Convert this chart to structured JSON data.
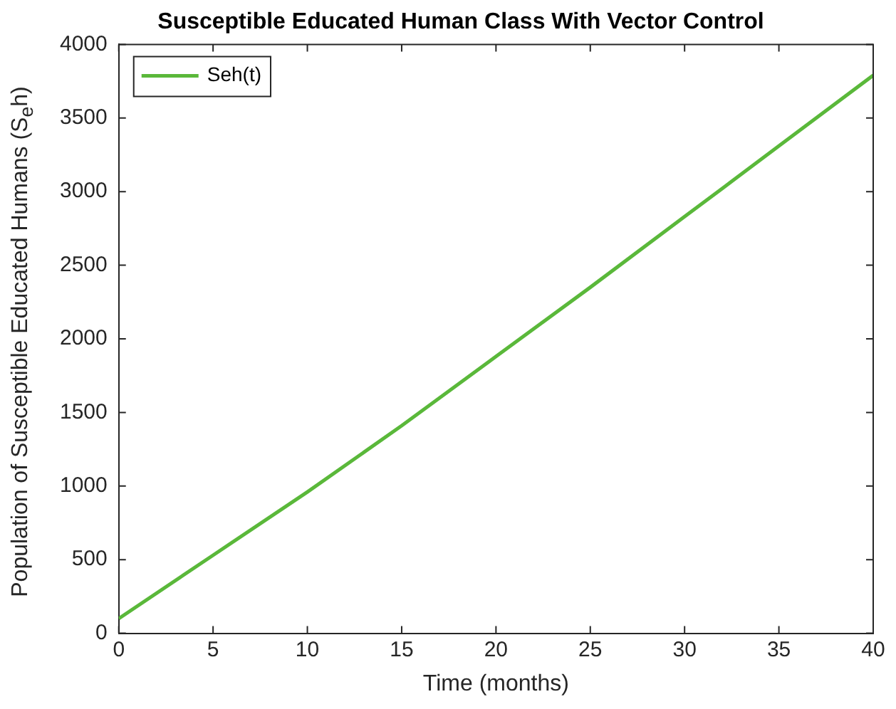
{
  "chart_data": {
    "type": "line",
    "title": "Susceptible Educated Human Class With Vector Control",
    "xlabel": "Time (months)",
    "ylabel": "Population of Susceptible Educated Humans (S$_{e}$h)",
    "x": [
      0,
      5,
      10,
      15,
      20,
      25,
      30,
      35,
      40
    ],
    "series": [
      {
        "name": "Seh(t)",
        "color": "#5ab83a",
        "values": [
          100,
          530,
          960,
          1410,
          1880,
          2350,
          2830,
          3310,
          3790
        ]
      }
    ],
    "xlim": [
      0,
      40
    ],
    "xticks": [
      0,
      5,
      10,
      15,
      20,
      25,
      30,
      35,
      40
    ],
    "ylim": [
      0,
      4000
    ],
    "yticks": [
      0,
      500,
      1000,
      1500,
      2000,
      2500,
      3000,
      3500,
      4000
    ],
    "grid": false,
    "legend": "top left",
    "marker": "none",
    "line_style": "solid"
  }
}
